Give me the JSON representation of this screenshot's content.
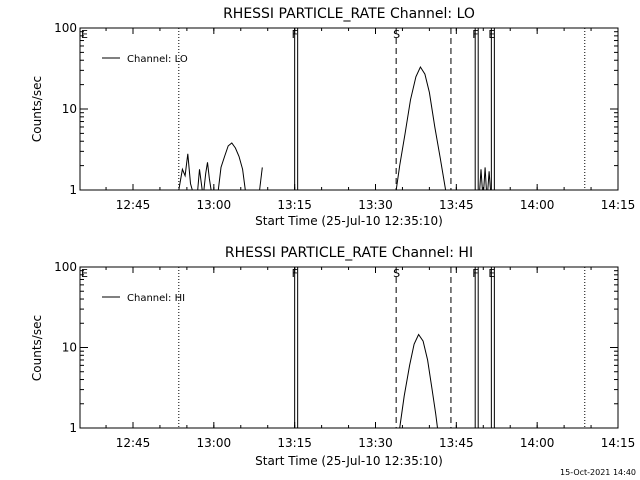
{
  "footer": {
    "timestamp": "15-Oct-2021 14:40"
  },
  "chart_data": [
    {
      "type": "line",
      "title": "RHESSI PARTICLE_RATE Channel: LO",
      "xlabel": "Start Time (25-Jul-10 12:35:10)",
      "ylabel": "Counts/sec",
      "yscale": "log",
      "ylim": [
        1,
        100
      ],
      "xlim": [
        "12:35:10",
        "14:15:00"
      ],
      "xticks": [
        "12:45",
        "13:00",
        "13:15",
        "13:30",
        "13:45",
        "14:00",
        "14:15"
      ],
      "yticks": [
        "1",
        "10",
        "100"
      ],
      "legend": {
        "position": "top-left",
        "label": "Channel: LO"
      },
      "markers": [
        {
          "label": "E",
          "time": "12:35:10",
          "style": "edge"
        },
        {
          "label": "",
          "time": "12:53:30",
          "style": "dotted"
        },
        {
          "label": "F",
          "time": "13:15:00",
          "style": "solid"
        },
        {
          "label": "S",
          "time": "13:33:50",
          "style": "dashed"
        },
        {
          "label": "",
          "time": "13:44:00",
          "style": "dashed"
        },
        {
          "label": "F",
          "time": "13:48:30",
          "style": "solid"
        },
        {
          "label": "E",
          "time": "13:51:30",
          "style": "solid"
        },
        {
          "label": "",
          "time": "14:08:50",
          "style": "dotted"
        }
      ],
      "series": [
        {
          "name": "Channel: LO",
          "segments": [
            [
              [
                "12:53:30",
                1.0
              ],
              [
                "12:54:10",
                1.8
              ],
              [
                "12:54:40",
                1.5
              ],
              [
                "12:55:10",
                2.8
              ],
              [
                "12:55:40",
                1.2
              ],
              [
                "12:56:00",
                1.0
              ]
            ],
            [
              [
                "12:57:00",
                1.0
              ],
              [
                "12:57:20",
                1.8
              ],
              [
                "12:57:50",
                1.0
              ]
            ],
            [
              [
                "12:58:10",
                1.0
              ],
              [
                "12:58:30",
                1.6
              ],
              [
                "12:58:50",
                2.2
              ],
              [
                "12:59:10",
                1.4
              ],
              [
                "12:59:30",
                1.0
              ]
            ],
            [
              [
                "13:00:50",
                1.0
              ],
              [
                "13:01:20",
                1.9
              ],
              [
                "13:02:00",
                2.6
              ],
              [
                "13:02:40",
                3.5
              ],
              [
                "13:03:20",
                3.8
              ],
              [
                "13:04:00",
                3.3
              ],
              [
                "13:04:40",
                2.6
              ],
              [
                "13:05:20",
                1.8
              ],
              [
                "13:05:50",
                1.0
              ]
            ],
            [
              [
                "13:08:30",
                1.0
              ],
              [
                "13:09:00",
                1.9
              ]
            ],
            [
              [
                "13:33:50",
                1.0
              ],
              [
                "13:34:30",
                2.0
              ],
              [
                "13:35:30",
                5.0
              ],
              [
                "13:36:30",
                13.0
              ],
              [
                "13:37:30",
                25.0
              ],
              [
                "13:38:20",
                33.0
              ],
              [
                "13:39:10",
                27.0
              ],
              [
                "13:40:00",
                16.0
              ],
              [
                "13:41:00",
                6.0
              ],
              [
                "13:42:00",
                2.5
              ],
              [
                "13:43:00",
                1.0
              ]
            ],
            [
              [
                "13:49:20",
                1.0
              ],
              [
                "13:49:35",
                1.8
              ],
              [
                "13:49:50",
                1.0
              ]
            ],
            [
              [
                "13:50:05",
                1.0
              ],
              [
                "13:50:20",
                1.9
              ],
              [
                "13:50:35",
                1.0
              ]
            ],
            [
              [
                "13:50:50",
                1.0
              ],
              [
                "13:51:05",
                1.7
              ],
              [
                "13:51:20",
                1.0
              ]
            ]
          ]
        }
      ]
    },
    {
      "type": "line",
      "title": "RHESSI PARTICLE_RATE Channel: HI",
      "xlabel": "Start Time (25-Jul-10 12:35:10)",
      "ylabel": "Counts/sec",
      "yscale": "log",
      "ylim": [
        1,
        100
      ],
      "xlim": [
        "12:35:10",
        "14:15:00"
      ],
      "xticks": [
        "12:45",
        "13:00",
        "13:15",
        "13:30",
        "13:45",
        "14:00",
        "14:15"
      ],
      "yticks": [
        "1",
        "10",
        "100"
      ],
      "legend": {
        "position": "top-left",
        "label": "Channel: HI"
      },
      "markers": [
        {
          "label": "E",
          "time": "12:35:10",
          "style": "edge"
        },
        {
          "label": "",
          "time": "12:53:30",
          "style": "dotted"
        },
        {
          "label": "F",
          "time": "13:15:00",
          "style": "solid"
        },
        {
          "label": "S",
          "time": "13:33:50",
          "style": "dashed"
        },
        {
          "label": "",
          "time": "13:44:00",
          "style": "dashed"
        },
        {
          "label": "F",
          "time": "13:48:30",
          "style": "solid"
        },
        {
          "label": "E",
          "time": "13:51:30",
          "style": "solid"
        },
        {
          "label": "",
          "time": "14:08:50",
          "style": "dotted"
        }
      ],
      "series": [
        {
          "name": "Channel: HI",
          "segments": [
            [
              [
                "13:34:30",
                1.0
              ],
              [
                "13:35:20",
                2.5
              ],
              [
                "13:36:20",
                6.0
              ],
              [
                "13:37:10",
                11.0
              ],
              [
                "13:38:00",
                14.5
              ],
              [
                "13:38:50",
                12.0
              ],
              [
                "13:39:40",
                7.0
              ],
              [
                "13:40:30",
                3.0
              ],
              [
                "13:41:10",
                1.5
              ],
              [
                "13:41:30",
                1.0
              ]
            ]
          ]
        }
      ]
    }
  ]
}
